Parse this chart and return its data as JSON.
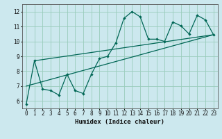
{
  "title": "",
  "xlabel": "Humidex (Indice chaleur)",
  "ylabel": "",
  "bg_color": "#cce8ee",
  "grid_color": "#99ccbb",
  "line_color": "#006655",
  "xlim": [
    -0.5,
    23.5
  ],
  "ylim": [
    5.5,
    12.5
  ],
  "xticks": [
    0,
    1,
    2,
    3,
    4,
    5,
    6,
    7,
    8,
    9,
    10,
    11,
    12,
    13,
    14,
    15,
    16,
    17,
    18,
    19,
    20,
    21,
    22,
    23
  ],
  "yticks": [
    6,
    7,
    8,
    9,
    10,
    11,
    12
  ],
  "main_x": [
    0,
    1,
    2,
    3,
    4,
    5,
    6,
    7,
    8,
    9,
    10,
    11,
    12,
    13,
    14,
    15,
    16,
    17,
    18,
    19,
    20,
    21,
    22,
    23
  ],
  "main_y": [
    5.8,
    8.7,
    6.8,
    6.7,
    6.4,
    7.8,
    6.7,
    6.5,
    7.8,
    8.85,
    9.0,
    9.9,
    11.55,
    12.0,
    11.65,
    10.15,
    10.15,
    10.0,
    11.3,
    11.05,
    10.5,
    11.75,
    11.45,
    10.45
  ],
  "trend1_x": [
    0,
    23
  ],
  "trend1_y": [
    7.0,
    10.45
  ],
  "trend2_x": [
    1,
    23
  ],
  "trend2_y": [
    8.7,
    10.45
  ]
}
